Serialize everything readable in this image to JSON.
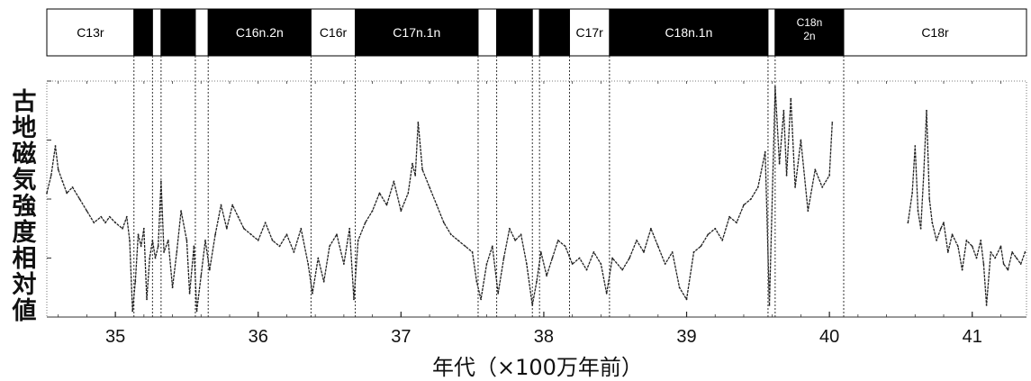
{
  "chart_data": {
    "type": "line",
    "xlabel": "年代（×100万年前）",
    "ylabel": "古地磁気強度相対値",
    "xlim": [
      34.52,
      41.38
    ],
    "ylim": [
      0,
      4
    ],
    "x_ticks": [
      35,
      36,
      37,
      38,
      39,
      40,
      41
    ],
    "grid": false,
    "chrons": [
      {
        "start": 34.52,
        "end": 35.13,
        "polarity": "reversed",
        "label": "C13r"
      },
      {
        "start": 35.13,
        "end": 35.26,
        "polarity": "normal",
        "label": ""
      },
      {
        "start": 35.26,
        "end": 35.32,
        "polarity": "reversed",
        "label": ""
      },
      {
        "start": 35.32,
        "end": 35.56,
        "polarity": "normal",
        "label": ""
      },
      {
        "start": 35.56,
        "end": 35.65,
        "polarity": "reversed",
        "label": ""
      },
      {
        "start": 35.65,
        "end": 36.37,
        "polarity": "normal",
        "label": "C16n.2n"
      },
      {
        "start": 36.37,
        "end": 36.68,
        "polarity": "reversed",
        "label": "C16r"
      },
      {
        "start": 36.68,
        "end": 37.54,
        "polarity": "normal",
        "label": "C17n.1n"
      },
      {
        "start": 37.54,
        "end": 37.67,
        "polarity": "reversed",
        "label": ""
      },
      {
        "start": 37.67,
        "end": 37.92,
        "polarity": "normal",
        "label": ""
      },
      {
        "start": 37.92,
        "end": 37.97,
        "polarity": "reversed",
        "label": ""
      },
      {
        "start": 37.97,
        "end": 38.18,
        "polarity": "normal",
        "label": ""
      },
      {
        "start": 38.18,
        "end": 38.46,
        "polarity": "reversed",
        "label": "C17r"
      },
      {
        "start": 38.46,
        "end": 39.57,
        "polarity": "normal",
        "label": "C18n.1n"
      },
      {
        "start": 39.57,
        "end": 39.62,
        "polarity": "reversed",
        "label": ""
      },
      {
        "start": 39.62,
        "end": 40.1,
        "polarity": "normal",
        "label": "C18n 2n"
      },
      {
        "start": 40.1,
        "end": 41.38,
        "polarity": "reversed",
        "label": "C18r"
      }
    ],
    "boundaries": [
      35.13,
      35.26,
      35.32,
      35.56,
      35.65,
      36.37,
      36.68,
      37.54,
      37.67,
      37.92,
      37.97,
      38.18,
      38.46,
      39.57,
      39.62,
      40.1
    ],
    "series": [
      {
        "x": [
          34.52,
          34.55,
          34.58,
          34.6,
          34.63,
          34.66,
          34.7,
          34.75,
          34.8,
          34.85,
          34.9,
          34.93,
          34.96,
          35.0,
          35.05,
          35.08,
          35.1,
          35.12,
          35.14,
          35.16,
          35.18,
          35.2,
          35.22,
          35.24,
          35.26,
          35.28,
          35.3,
          35.32,
          35.34,
          35.37,
          35.4,
          35.43,
          35.46,
          35.5,
          35.52,
          35.55,
          35.57,
          35.6,
          35.63,
          35.66,
          35.7,
          35.74,
          35.78,
          35.82,
          35.86,
          35.9,
          35.95,
          36.0,
          36.05,
          36.1,
          36.15,
          36.2,
          36.25,
          36.3,
          36.35,
          36.38,
          36.42,
          36.46,
          36.5,
          36.55,
          36.6,
          36.64,
          36.67,
          36.7,
          36.75,
          36.8,
          36.85,
          36.9,
          36.95,
          37.0,
          37.05,
          37.08,
          37.1,
          37.12,
          37.15,
          37.2,
          37.25,
          37.3,
          37.35,
          37.4,
          37.45,
          37.5,
          37.53,
          37.56,
          37.6,
          37.64,
          37.68,
          37.72,
          37.76,
          37.8,
          37.84,
          37.88,
          37.92,
          37.95,
          37.98,
          38.02,
          38.06,
          38.1,
          38.15,
          38.2,
          38.25,
          38.3,
          38.35,
          38.4,
          38.44,
          38.48,
          38.55,
          38.6,
          38.65,
          38.7,
          38.75,
          38.8,
          38.85,
          38.9,
          38.95,
          39.0,
          39.05,
          39.1,
          39.15,
          39.2,
          39.25,
          39.3,
          39.35,
          39.4,
          39.45,
          39.5,
          39.55,
          39.58,
          39.62,
          39.65,
          39.68,
          39.7,
          39.73,
          39.76,
          39.8,
          39.85,
          39.9,
          39.95,
          40.0,
          40.02
        ],
        "y": [
          2.1,
          2.4,
          2.9,
          2.5,
          2.3,
          2.1,
          2.2,
          2.0,
          1.8,
          1.6,
          1.7,
          1.6,
          1.7,
          1.6,
          1.5,
          1.7,
          1.3,
          0.1,
          0.6,
          1.4,
          1.2,
          1.5,
          0.3,
          1.0,
          1.3,
          1.0,
          1.2,
          2.3,
          1.1,
          1.3,
          0.5,
          1.1,
          1.8,
          1.3,
          0.4,
          1.2,
          0.1,
          0.7,
          1.3,
          0.8,
          1.4,
          1.9,
          1.5,
          1.9,
          1.7,
          1.5,
          1.4,
          1.3,
          1.6,
          1.3,
          1.2,
          1.4,
          1.1,
          1.5,
          0.9,
          0.4,
          1.0,
          0.6,
          1.2,
          1.4,
          0.9,
          1.5,
          0.3,
          1.3,
          1.6,
          1.8,
          2.1,
          1.9,
          2.3,
          1.8,
          2.1,
          2.6,
          2.4,
          3.3,
          2.5,
          2.2,
          1.9,
          1.6,
          1.4,
          1.3,
          1.2,
          1.1,
          0.6,
          0.3,
          0.9,
          1.2,
          0.4,
          1.0,
          1.5,
          1.3,
          1.4,
          0.9,
          0.2,
          0.6,
          1.1,
          0.7,
          1.0,
          1.3,
          1.2,
          0.9,
          1.0,
          0.8,
          1.1,
          0.9,
          0.4,
          1.0,
          0.8,
          1.0,
          1.3,
          1.1,
          1.5,
          1.2,
          0.9,
          1.1,
          0.5,
          0.3,
          1.1,
          1.2,
          1.4,
          1.5,
          1.3,
          1.7,
          1.6,
          1.9,
          2.0,
          2.2,
          2.8,
          0.2,
          3.9,
          2.6,
          3.5,
          2.4,
          3.7,
          2.2,
          3.0,
          1.8,
          2.5,
          2.2,
          2.4,
          3.3
        ]
      },
      {
        "x": [
          40.55,
          40.58,
          40.6,
          40.62,
          40.64,
          40.66,
          40.68,
          40.7,
          40.72,
          40.75,
          40.78,
          40.8,
          40.83,
          40.86,
          40.9,
          40.93,
          40.96,
          41.0,
          41.03,
          41.06,
          41.08,
          41.1,
          41.13,
          41.16,
          41.2,
          41.22,
          41.25,
          41.28,
          41.31,
          41.34,
          41.37
        ],
        "y": [
          1.6,
          2.1,
          2.9,
          1.8,
          1.5,
          2.4,
          3.5,
          2.0,
          1.6,
          1.3,
          1.5,
          1.6,
          1.1,
          1.4,
          1.2,
          0.8,
          1.3,
          1.2,
          1.0,
          1.3,
          0.9,
          0.2,
          1.1,
          1.0,
          1.2,
          0.9,
          0.8,
          1.1,
          1.0,
          0.9,
          1.1
        ]
      }
    ]
  }
}
